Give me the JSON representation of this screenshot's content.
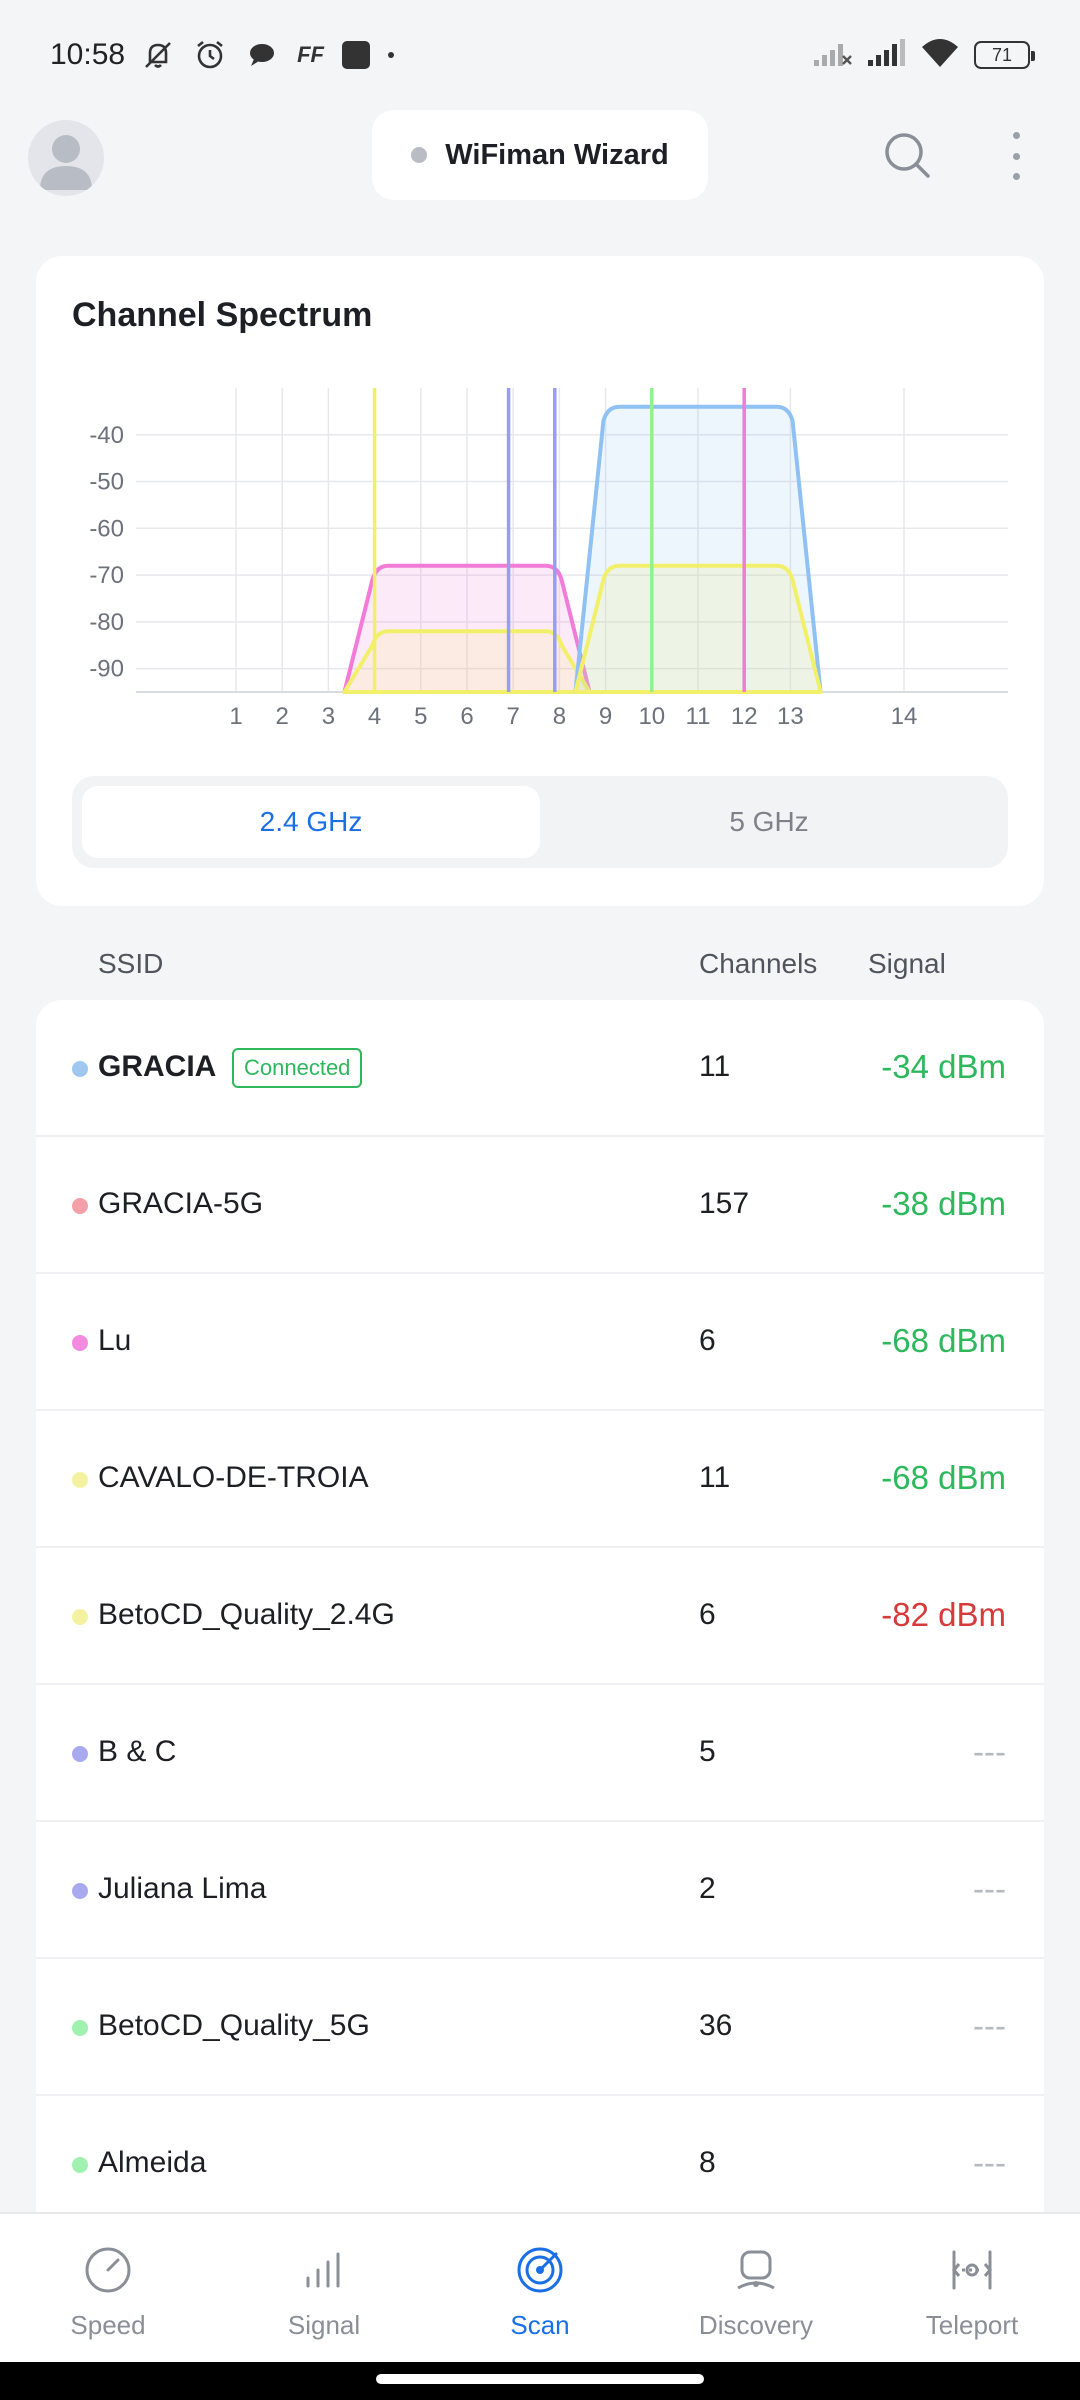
{
  "status_bar": {
    "time": "10:58",
    "battery": "71",
    "icons": [
      "mute-icon",
      "alarm-icon",
      "chat-icon",
      "ff-icon",
      "app-icon",
      "dot-icon",
      "signal-icon",
      "signal-icon",
      "wifi-icon",
      "battery-icon"
    ],
    "ff_label": "FF"
  },
  "header": {
    "wizard_label": "WiFiman Wizard",
    "search_icon": "search-icon",
    "more_icon": "more-vertical-icon"
  },
  "spectrum": {
    "title": "Channel Spectrum",
    "bands": [
      {
        "label": "2.4 GHz",
        "active": true
      },
      {
        "label": "5 GHz",
        "active": false
      }
    ]
  },
  "chart_data": {
    "type": "area",
    "y_ticks": [
      "-40",
      "-50",
      "-60",
      "-70",
      "-80",
      "-90"
    ],
    "x_ticks": [
      "1",
      "2",
      "3",
      "4",
      "5",
      "6",
      "7",
      "8",
      "9",
      "10",
      "11",
      "12",
      "13",
      "14"
    ],
    "ylim": [
      -95,
      -30
    ],
    "grid": true,
    "series": [
      {
        "name": "Lu",
        "color": "#f27bd8",
        "channel": 6,
        "dbm": -68,
        "width": 2
      },
      {
        "name": "BetoCD_Quality_2.4G",
        "color": "#f2f06b",
        "channel": 6,
        "dbm": -82,
        "width": 2
      },
      {
        "name": "GRACIA",
        "color": "#8fc2f2",
        "channel": 11,
        "dbm": -34,
        "width": 2
      },
      {
        "name": "CAVALO-DE-TROIA",
        "color": "#f2f06b",
        "channel": 11,
        "dbm": -68,
        "width": 2
      }
    ],
    "markers": [
      {
        "channel": 4,
        "color": "#f2f06b"
      },
      {
        "channel": 6.9,
        "color": "#9a9cf2"
      },
      {
        "channel": 7.9,
        "color": "#9a9cf2"
      },
      {
        "channel": 10,
        "color": "#8ff28f"
      },
      {
        "channel": 12,
        "color": "#f27bd8"
      }
    ]
  },
  "list": {
    "headers": {
      "ssid": "SSID",
      "channels": "Channels",
      "signal": "Signal"
    },
    "connected_label": "Connected",
    "rows": [
      {
        "ssid": "GRACIA",
        "connected": true,
        "channel": "11",
        "signal": "-34 dBm",
        "status": "good",
        "color": "#9ec8f0"
      },
      {
        "ssid": "GRACIA-5G",
        "connected": false,
        "channel": "157",
        "signal": "-38 dBm",
        "status": "good",
        "color": "#f4a0a8"
      },
      {
        "ssid": "Lu",
        "connected": false,
        "channel": "6",
        "signal": "-68 dBm",
        "status": "good",
        "color": "#f48ae0"
      },
      {
        "ssid": "CAVALO-DE-TROIA",
        "connected": false,
        "channel": "11",
        "signal": "-68 dBm",
        "status": "good",
        "color": "#f4f2a0"
      },
      {
        "ssid": "BetoCD_Quality_2.4G",
        "connected": false,
        "channel": "6",
        "signal": "-82 dBm",
        "status": "bad",
        "color": "#f4f2a0"
      },
      {
        "ssid": "B & C",
        "connected": false,
        "channel": "5",
        "signal": "---",
        "status": "none",
        "color": "#a9a9f0"
      },
      {
        "ssid": "Juliana Lima",
        "connected": false,
        "channel": "2",
        "signal": "---",
        "status": "none",
        "color": "#a9a9f0"
      },
      {
        "ssid": "BetoCD_Quality_5G",
        "connected": false,
        "channel": "36",
        "signal": "---",
        "status": "none",
        "color": "#a0f0b0"
      },
      {
        "ssid": "Almeida",
        "connected": false,
        "channel": "8",
        "signal": "---",
        "status": "none",
        "color": "#a0f0b0"
      }
    ]
  },
  "bottom_nav": [
    {
      "label": "Speed",
      "icon": "speedometer-icon",
      "active": false
    },
    {
      "label": "Signal",
      "icon": "signal-bars-icon",
      "active": false
    },
    {
      "label": "Scan",
      "icon": "radar-icon",
      "active": true
    },
    {
      "label": "Discovery",
      "icon": "device-icon",
      "active": false
    },
    {
      "label": "Teleport",
      "icon": "teleport-icon",
      "active": false
    }
  ]
}
